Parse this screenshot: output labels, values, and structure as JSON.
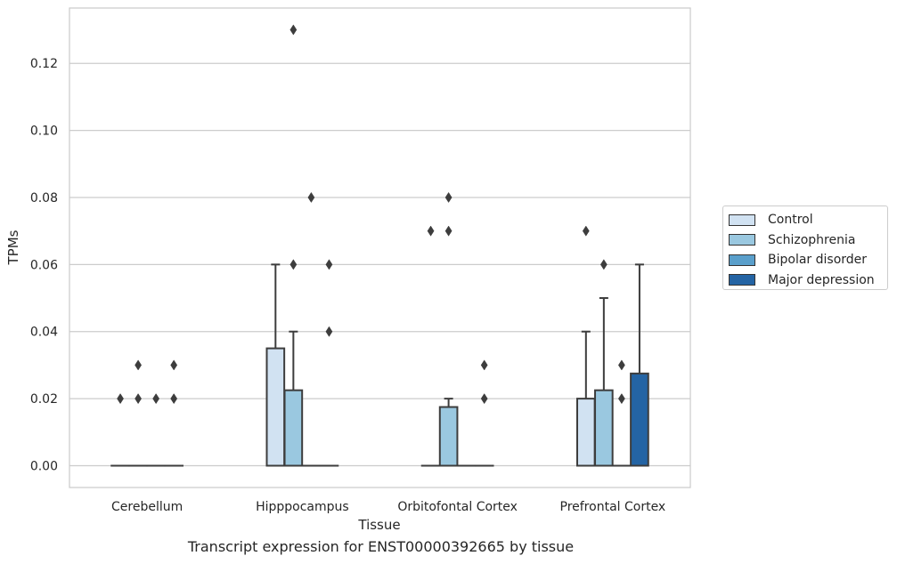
{
  "chart_data": {
    "type": "box",
    "title": "",
    "caption": "Transcript expression for ENST00000392665 by tissue",
    "xlabel": "Tissue",
    "ylabel": "TPMs",
    "ylim": [
      -0.0065,
      0.1365
    ],
    "yticks": [
      0.0,
      0.02,
      0.04,
      0.06,
      0.08,
      0.1,
      0.12
    ],
    "ytick_labels": [
      "0.00",
      "0.02",
      "0.04",
      "0.06",
      "0.08",
      "0.10",
      "0.12"
    ],
    "grid": "horizontal",
    "legend_position": "right",
    "categories": [
      "Cerebellum",
      "Hipppocampus",
      "Orbitofontal Cortex",
      "Prefrontal Cortex"
    ],
    "series": [
      {
        "name": "Control",
        "color": "#d1e2f2",
        "boxes": [
          {
            "category": "Cerebellum",
            "q1": 0.0,
            "median": 0.0,
            "q3": 0.0,
            "whisker_low": 0.0,
            "whisker_high": 0.0,
            "outliers": [
              0.02
            ]
          },
          {
            "category": "Hipppocampus",
            "q1": 0.0,
            "median": 0.0,
            "q3": 0.035,
            "whisker_low": 0.0,
            "whisker_high": 0.06,
            "outliers": []
          },
          {
            "category": "Orbitofontal Cortex",
            "q1": 0.0,
            "median": 0.0,
            "q3": 0.0,
            "whisker_low": 0.0,
            "whisker_high": 0.0,
            "outliers": [
              0.07
            ]
          },
          {
            "category": "Prefrontal Cortex",
            "q1": 0.0,
            "median": 0.0,
            "q3": 0.02,
            "whisker_low": 0.0,
            "whisker_high": 0.04,
            "outliers": [
              0.07
            ]
          }
        ]
      },
      {
        "name": "Schizophrenia",
        "color": "#9ac8e0",
        "boxes": [
          {
            "category": "Cerebellum",
            "q1": 0.0,
            "median": 0.0,
            "q3": 0.0,
            "whisker_low": 0.0,
            "whisker_high": 0.0,
            "outliers": [
              0.02,
              0.03
            ]
          },
          {
            "category": "Hipppocampus",
            "q1": 0.0,
            "median": 0.0,
            "q3": 0.0225,
            "whisker_low": 0.0,
            "whisker_high": 0.04,
            "outliers": [
              0.06,
              0.13
            ]
          },
          {
            "category": "Orbitofontal Cortex",
            "q1": 0.0,
            "median": 0.0,
            "q3": 0.0175,
            "whisker_low": 0.0,
            "whisker_high": 0.02,
            "outliers": [
              0.07,
              0.08
            ]
          },
          {
            "category": "Prefrontal Cortex",
            "q1": 0.0,
            "median": 0.0,
            "q3": 0.0225,
            "whisker_low": 0.0,
            "whisker_high": 0.05,
            "outliers": [
              0.06
            ]
          }
        ]
      },
      {
        "name": "Bipolar disorder",
        "color": "#5a9fcb",
        "boxes": [
          {
            "category": "Cerebellum",
            "q1": 0.0,
            "median": 0.0,
            "q3": 0.0,
            "whisker_low": 0.0,
            "whisker_high": 0.0,
            "outliers": [
              0.02
            ]
          },
          {
            "category": "Hipppocampus",
            "q1": 0.0,
            "median": 0.0,
            "q3": 0.0,
            "whisker_low": 0.0,
            "whisker_high": 0.0,
            "outliers": [
              0.08
            ]
          },
          {
            "category": "Orbitofontal Cortex",
            "q1": 0.0,
            "median": 0.0,
            "q3": 0.0,
            "whisker_low": 0.0,
            "whisker_high": 0.0,
            "outliers": []
          },
          {
            "category": "Prefrontal Cortex",
            "q1": 0.0,
            "median": 0.0,
            "q3": 0.0,
            "whisker_low": 0.0,
            "whisker_high": 0.0,
            "outliers": [
              0.02,
              0.03
            ]
          }
        ]
      },
      {
        "name": "Major depression",
        "color": "#2464a4",
        "boxes": [
          {
            "category": "Cerebellum",
            "q1": 0.0,
            "median": 0.0,
            "q3": 0.0,
            "whisker_low": 0.0,
            "whisker_high": 0.0,
            "outliers": [
              0.02,
              0.03
            ]
          },
          {
            "category": "Hipppocampus",
            "q1": 0.0,
            "median": 0.0,
            "q3": 0.0,
            "whisker_low": 0.0,
            "whisker_high": 0.0,
            "outliers": [
              0.04,
              0.06
            ]
          },
          {
            "category": "Orbitofontal Cortex",
            "q1": 0.0,
            "median": 0.0,
            "q3": 0.0,
            "whisker_low": 0.0,
            "whisker_high": 0.0,
            "outliers": [
              0.02,
              0.03
            ]
          },
          {
            "category": "Prefrontal Cortex",
            "q1": 0.0,
            "median": 0.0,
            "q3": 0.0275,
            "whisker_low": 0.0,
            "whisker_high": 0.06,
            "outliers": []
          }
        ]
      }
    ]
  },
  "colors": {
    "grid": "#cccccc",
    "edge": "#3d3d3d",
    "outlier": "#3d3d3d"
  }
}
